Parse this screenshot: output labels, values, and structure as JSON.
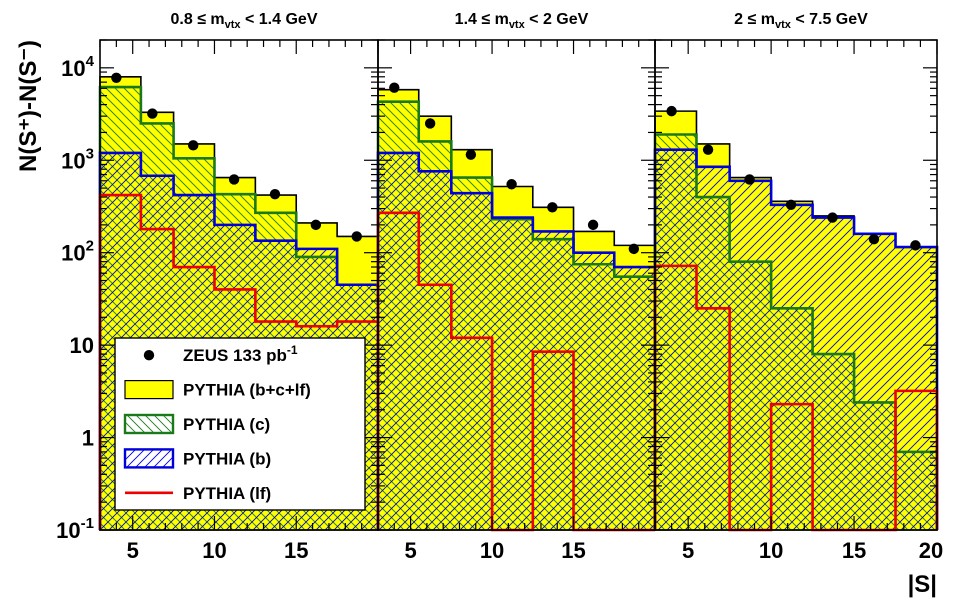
{
  "chart_data": {
    "type": "bar",
    "ylabel": "N(S⁺)-N(S⁻)",
    "xlabel": "|S|",
    "yscale": "log",
    "ylim": [
      0.1,
      20000
    ],
    "ytick_labels": [
      "10⁻¹",
      "1",
      "10",
      "10²",
      "10³",
      "10⁴"
    ],
    "ytick_values": [
      0.1,
      1,
      10,
      100,
      1000,
      10000
    ],
    "legend_placement": "bottom-left of first panel",
    "legend": [
      {
        "label": "ZEUS 133 pb⁻¹",
        "style": "marker"
      },
      {
        "label": "PYTHIA (b+c+lf)",
        "style": "fill-yellow"
      },
      {
        "label": "PYTHIA (c)",
        "style": "hatch-green"
      },
      {
        "label": "PYTHIA (b)",
        "style": "hatch-blue"
      },
      {
        "label": "PYTHIA (lf)",
        "style": "line-red"
      }
    ],
    "colors": {
      "total": "#ffff00",
      "c": "#1a7a1a",
      "b": "#0000dd",
      "lf": "#ee0000",
      "data": "#000000"
    },
    "panels": [
      {
        "title": "0.8 ≤ m_vtx < 1.4 GeV",
        "title_main": "0.8 ≤ m",
        "title_sub": "vtx",
        "title_rest": " < 1.4 GeV",
        "xlim": [
          3,
          20
        ],
        "xtick_labels": [
          "5",
          "10",
          "15"
        ],
        "xtick_values": [
          5,
          10,
          15
        ],
        "bin_edges": [
          3,
          5.5,
          7.5,
          10,
          12.5,
          15,
          17.5,
          20
        ],
        "total": [
          8000,
          3300,
          1500,
          650,
          420,
          210,
          150
        ],
        "c": [
          6200,
          2500,
          1050,
          430,
          270,
          90,
          45
        ],
        "b": [
          1200,
          680,
          420,
          200,
          135,
          110,
          45
        ],
        "lf": [
          420,
          180,
          70,
          40,
          18,
          16,
          18
        ],
        "data_x": [
          4,
          6.2,
          8.7,
          11.2,
          13.7,
          16.2,
          18.7
        ],
        "data_y": [
          7800,
          3200,
          1450,
          620,
          430,
          200,
          150
        ]
      },
      {
        "title": "1.4 ≤ m_vtx < 2 GeV",
        "title_main": "1.4 ≤ m",
        "title_sub": "vtx",
        "title_rest": " < 2 GeV",
        "xlim": [
          3,
          20
        ],
        "xtick_labels": [
          "5",
          "10",
          "15"
        ],
        "xtick_values": [
          5,
          10,
          15
        ],
        "bin_edges": [
          3,
          5.5,
          7.5,
          10,
          12.5,
          15,
          17.5,
          20
        ],
        "total": [
          5800,
          3000,
          1300,
          520,
          310,
          170,
          120
        ],
        "c": [
          4300,
          1600,
          650,
          230,
          140,
          75,
          55
        ],
        "b": [
          1200,
          760,
          440,
          240,
          170,
          100,
          70
        ],
        "lf": [
          270,
          45,
          12,
          0.1,
          8.5,
          0.1,
          0.1
        ],
        "data_x": [
          4,
          6.2,
          8.7,
          11.2,
          13.7,
          16.2,
          18.7
        ],
        "data_y": [
          6100,
          2500,
          1150,
          550,
          310,
          200,
          110
        ]
      },
      {
        "title": "2 ≤ m_vtx < 7.5 GeV",
        "title_main": "2 ≤ m",
        "title_sub": "vtx",
        "title_rest": " < 7.5 GeV",
        "xlim": [
          3,
          20
        ],
        "xtick_labels": [
          "5",
          "10",
          "15",
          "20"
        ],
        "xtick_values": [
          5,
          10,
          15,
          20
        ],
        "bin_edges": [
          3,
          5.5,
          7.5,
          10,
          12.5,
          15,
          17.5,
          20
        ],
        "total": [
          3400,
          1500,
          650,
          360,
          250,
          160,
          115
        ],
        "c": [
          1900,
          400,
          80,
          25,
          8,
          2.4,
          0.7
        ],
        "b": [
          1300,
          850,
          600,
          330,
          240,
          160,
          115
        ],
        "lf": [
          72,
          25,
          0.1,
          2.3,
          0.1,
          0.1,
          3.2
        ],
        "data_x": [
          4,
          6.2,
          8.7,
          11.2,
          13.7,
          16.2,
          18.7
        ],
        "data_y": [
          3400,
          1300,
          620,
          330,
          240,
          140,
          120
        ]
      }
    ]
  }
}
